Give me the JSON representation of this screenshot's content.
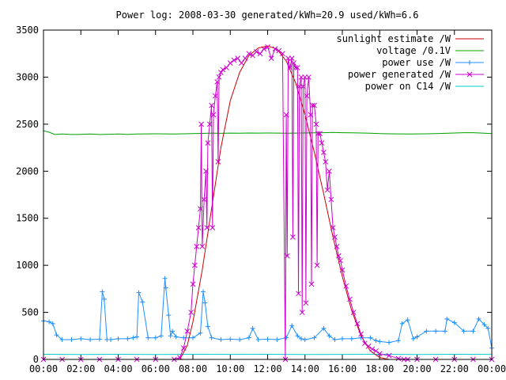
{
  "chart_data": {
    "type": "line",
    "title": "Power log: 2008-03-30 generated/kWh=20.9 used/kWh=6.6",
    "xlabel": "",
    "ylabel": "",
    "xlim": [
      0,
      24
    ],
    "ylim": [
      0,
      3500
    ],
    "grid": false,
    "legend_position": "top-right",
    "x_ticks": [
      "00:00",
      "02:00",
      "04:00",
      "06:00",
      "08:00",
      "10:00",
      "12:00",
      "14:00",
      "16:00",
      "18:00",
      "20:00",
      "22:00",
      "00:00"
    ],
    "y_ticks": [
      "0",
      "500",
      "1000",
      "1500",
      "2000",
      "2500",
      "3000",
      "3500"
    ],
    "series": [
      {
        "name": "sunlight estimate /W",
        "color": "#cc0000",
        "marker": "none",
        "x": [
          7.3,
          7.7,
          8.0,
          8.5,
          9.0,
          9.5,
          10.0,
          10.5,
          11.0,
          11.5,
          12.0,
          12.5,
          13.0,
          13.5,
          14.0,
          14.5,
          15.0,
          15.5,
          16.0,
          16.5,
          17.0,
          17.5,
          18.0,
          18.5
        ],
        "y": [
          0,
          150,
          400,
          950,
          1600,
          2250,
          2750,
          3050,
          3230,
          3310,
          3330,
          3300,
          3170,
          2940,
          2600,
          2200,
          1760,
          1300,
          880,
          520,
          250,
          90,
          20,
          0
        ]
      },
      {
        "name": "voltage /0.1V",
        "color": "#00a000",
        "marker": "none",
        "x": [
          0,
          0.3,
          0.6,
          1.0,
          1.5,
          2.0,
          2.5,
          3.0,
          3.5,
          4.0,
          4.5,
          5.0,
          5.5,
          6.0,
          6.5,
          7.0,
          7.5,
          8.0,
          8.5,
          9.0,
          9.5,
          10.0,
          10.5,
          11.0,
          11.5,
          12.0,
          12.5,
          13.0,
          13.5,
          14.0,
          14.5,
          15.0,
          15.5,
          16.0,
          16.5,
          17.0,
          17.5,
          18.0,
          18.5,
          19.0,
          19.5,
          20.0,
          20.5,
          21.0,
          21.5,
          22.0,
          22.5,
          23.0,
          23.5,
          24.0
        ],
        "y": [
          2430,
          2415,
          2390,
          2395,
          2390,
          2392,
          2395,
          2390,
          2393,
          2395,
          2392,
          2395,
          2397,
          2398,
          2397,
          2395,
          2398,
          2400,
          2402,
          2405,
          2403,
          2405,
          2404,
          2406,
          2405,
          2406,
          2405,
          2404,
          2405,
          2406,
          2408,
          2410,
          2412,
          2410,
          2408,
          2406,
          2404,
          2400,
          2398,
          2397,
          2396,
          2397,
          2398,
          2400,
          2403,
          2406,
          2410,
          2410,
          2405,
          2400
        ]
      },
      {
        "name": "power use /W",
        "color": "#1e90ff",
        "marker": "plus",
        "x": [
          0.0,
          0.3,
          0.5,
          0.7,
          1.0,
          1.5,
          2.0,
          2.5,
          3.0,
          3.15,
          3.25,
          3.4,
          3.6,
          4.0,
          4.5,
          4.8,
          5.0,
          5.1,
          5.3,
          5.6,
          6.0,
          6.3,
          6.5,
          6.55,
          6.7,
          6.8,
          6.9,
          7.1,
          7.5,
          8.0,
          8.4,
          8.55,
          8.65,
          8.8,
          9.0,
          9.5,
          10.0,
          10.5,
          11.0,
          11.2,
          11.5,
          12.0,
          12.5,
          13.0,
          13.3,
          13.6,
          13.8,
          14.0,
          14.5,
          15.0,
          15.3,
          15.6,
          16.0,
          16.5,
          17.0,
          17.5,
          17.8,
          18.0,
          18.5,
          19.0,
          19.2,
          19.5,
          19.8,
          20.0,
          20.5,
          21.0,
          21.5,
          21.6,
          22.0,
          22.5,
          23.0,
          23.3,
          23.6,
          23.8,
          24.0
        ],
        "y": [
          410,
          400,
          380,
          260,
          210,
          210,
          220,
          210,
          215,
          720,
          640,
          210,
          210,
          220,
          220,
          230,
          240,
          710,
          610,
          230,
          230,
          250,
          860,
          760,
          470,
          250,
          300,
          240,
          230,
          230,
          280,
          720,
          600,
          350,
          230,
          210,
          215,
          210,
          230,
          330,
          210,
          215,
          210,
          230,
          360,
          250,
          220,
          210,
          230,
          330,
          250,
          210,
          220,
          220,
          230,
          230,
          200,
          190,
          180,
          200,
          380,
          420,
          220,
          240,
          300,
          300,
          300,
          430,
          390,
          300,
          300,
          430,
          370,
          330,
          120
        ]
      },
      {
        "name": "power generated /W",
        "color": "#cc00cc",
        "marker": "cross",
        "x": [
          0.0,
          1.0,
          2.0,
          3.0,
          4.0,
          5.0,
          6.0,
          7.0,
          7.3,
          7.5,
          7.7,
          7.9,
          8.0,
          8.1,
          8.2,
          8.3,
          8.4,
          8.45,
          8.5,
          8.6,
          8.7,
          8.75,
          8.8,
          8.9,
          9.0,
          9.05,
          9.1,
          9.2,
          9.3,
          9.35,
          9.4,
          9.5,
          9.6,
          9.8,
          10.0,
          10.2,
          10.4,
          10.6,
          10.8,
          11.0,
          11.2,
          11.4,
          11.6,
          11.8,
          12.0,
          12.2,
          12.4,
          12.6,
          12.8,
          12.95,
          13.0,
          13.05,
          13.1,
          13.2,
          13.3,
          13.35,
          13.4,
          13.5,
          13.6,
          13.65,
          13.7,
          13.8,
          13.85,
          13.9,
          14.0,
          14.05,
          14.1,
          14.2,
          14.3,
          14.35,
          14.4,
          14.5,
          14.6,
          14.65,
          14.7,
          14.8,
          14.9,
          15.0,
          15.1,
          15.2,
          15.3,
          15.4,
          15.5,
          15.6,
          15.7,
          15.8,
          15.9,
          16.0,
          16.2,
          16.4,
          16.6,
          16.8,
          17.0,
          17.2,
          17.4,
          17.6,
          17.8,
          18.0,
          18.5,
          19.0,
          19.3,
          19.5,
          20.0,
          21.0,
          22.0,
          23.0,
          24.0
        ],
        "y": [
          0,
          0,
          0,
          0,
          0,
          0,
          0,
          0,
          20,
          120,
          300,
          500,
          800,
          1000,
          1200,
          1400,
          1600,
          2500,
          1200,
          1700,
          2000,
          1400,
          2300,
          2500,
          2700,
          1400,
          2600,
          2800,
          2950,
          2100,
          3000,
          3050,
          3080,
          3100,
          3150,
          3180,
          3200,
          3150,
          3200,
          3250,
          3230,
          3270,
          3250,
          3300,
          3320,
          3200,
          3300,
          3280,
          3250,
          0,
          2600,
          1100,
          3200,
          3100,
          3200,
          1300,
          3150,
          3100,
          3100,
          700,
          2900,
          3000,
          500,
          2900,
          3000,
          600,
          2800,
          3000,
          2600,
          800,
          2700,
          2700,
          2500,
          1000,
          2400,
          2400,
          2300,
          2200,
          2100,
          1800,
          2000,
          1700,
          1400,
          1300,
          1200,
          1100,
          1050,
          950,
          780,
          640,
          500,
          380,
          270,
          170,
          140,
          110,
          90,
          60,
          40,
          10,
          0,
          0,
          0,
          0,
          0,
          0,
          0
        ]
      },
      {
        "name": "power on C14 /W",
        "color": "#00cccc",
        "marker": "none",
        "x": [
          0,
          2,
          4,
          6,
          8,
          10,
          12,
          14,
          16,
          18,
          20,
          22,
          24
        ],
        "y": [
          55,
          52,
          55,
          53,
          55,
          54,
          55,
          52,
          54,
          55,
          53,
          55,
          54
        ]
      }
    ]
  }
}
